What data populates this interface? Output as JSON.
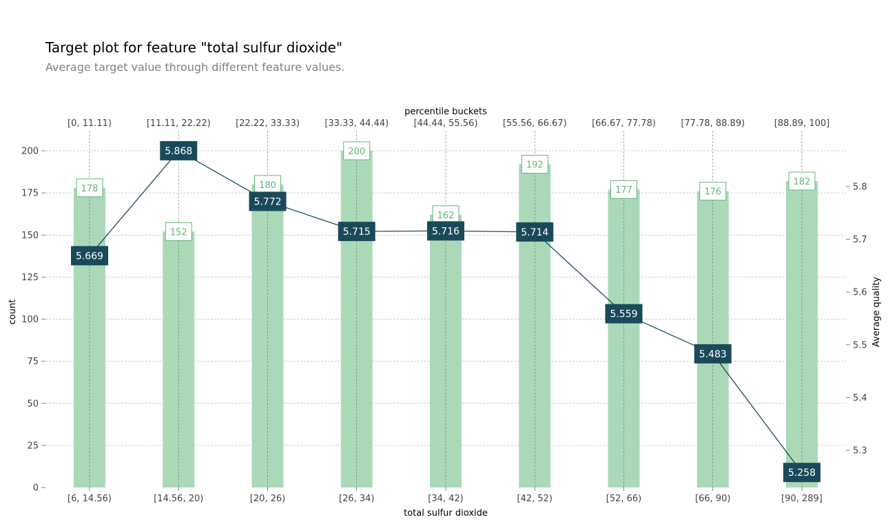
{
  "header": {
    "title": "Target plot for feature \"total sulfur dioxide\"",
    "subtitle": "Average target value through different feature values."
  },
  "chart_data": {
    "type": "bar",
    "categories": [
      "[6, 14.56)",
      "[14.56, 20)",
      "[20, 26)",
      "[26, 34)",
      "[34, 42)",
      "[42, 52)",
      "[52, 66)",
      "[66, 90)",
      "[90, 289]"
    ],
    "top_categories": [
      "[0, 11.11)",
      "[11.11, 22.22)",
      "[22.22, 33.33)",
      "[33.33, 44.44)",
      "[44.44, 55.56)",
      "[55.56, 66.67)",
      "[66.67, 77.78)",
      "[77.78, 88.89)",
      "[88.89, 100]"
    ],
    "xlabel": "total sulfur dioxide",
    "top_xlabel": "percentile buckets",
    "ylabel": "count",
    "ylabel_right": "Average quality",
    "ylim": [
      0,
      200
    ],
    "yticks": [
      0,
      25,
      50,
      75,
      100,
      125,
      150,
      175,
      200
    ],
    "ylim_right": [
      5.222,
      5.896
    ],
    "yticks_right": [
      5.3,
      5.4,
      5.5,
      5.6,
      5.7,
      5.8
    ],
    "grid": true,
    "series": [
      {
        "values": [
          178,
          152,
          180,
          200,
          162,
          192,
          177,
          176,
          182
        ],
        "color": "#abd9b8",
        "label_color": "#5fb574"
      },
      {
        "type": "line",
        "values": [
          5.669,
          5.868,
          5.772,
          5.715,
          5.716,
          5.714,
          5.559,
          5.483,
          5.258
        ],
        "color": "#1a4a5a"
      }
    ]
  }
}
